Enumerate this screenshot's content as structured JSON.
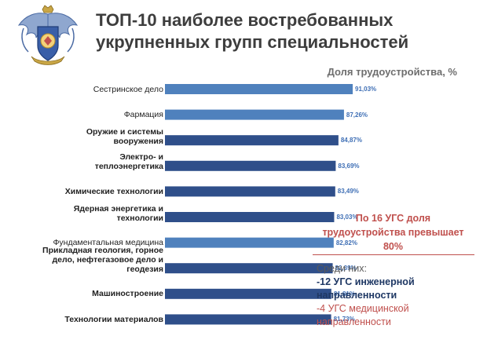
{
  "title": {
    "line1": "ТОП-10 наиболее востребованных",
    "line2": "укрупненных групп специальностей"
  },
  "colors": {
    "bar_light": "#4f81bd",
    "bar_dark": "#2f4f8a",
    "value_text": "#3f6fb5",
    "callout_text": "#c0504d",
    "note_blue": "#1f3864"
  },
  "chart_data": {
    "type": "bar",
    "orientation": "horizontal",
    "ylabel": "Доля трудоустройства, %",
    "value_suffix": "%",
    "xlim": [
      0,
      100
    ],
    "grid": false,
    "categories": [
      "Сестринское дело",
      "Фармация",
      "Оружие и системы вооружения",
      "Электро- и теплоэнергетика",
      "Химические технологии",
      "Ядерная энергетика и технологии",
      "Фундаментальная медицина",
      "Прикладная геология, горное дело, нефтегазовое дело и геодезия",
      "Машиностроение",
      "Технологии материалов"
    ],
    "category_lines": [
      [
        "Сестринское дело"
      ],
      [
        "Фармация"
      ],
      [
        "Оружие и системы",
        "вооружения"
      ],
      [
        "Электро- и",
        "теплоэнергетика"
      ],
      [
        "Химические технологии"
      ],
      [
        "Ядерная энергетика и",
        "технологии"
      ],
      [
        "Фундаментальная медицина"
      ],
      [
        "Прикладная геология, горное",
        "дело, нефтегазовое дело и",
        "геодезия"
      ],
      [
        "Машиностроение"
      ],
      [
        "Технологии материалов"
      ]
    ],
    "bold": [
      false,
      false,
      true,
      true,
      true,
      true,
      false,
      true,
      true,
      true
    ],
    "values": [
      91.03,
      87.26,
      84.87,
      83.69,
      83.49,
      83.03,
      82.82,
      82.39,
      81.81,
      81.73
    ],
    "value_labels": [
      "91,03%",
      "87,26%",
      "84,87%",
      "83,69%",
      "83,49%",
      "83,03%",
      "82,82%",
      "82,39%",
      "81,81%",
      "81,73%"
    ],
    "bar_style": [
      "light",
      "light",
      "dark",
      "dark",
      "dark",
      "dark",
      "light",
      "dark",
      "dark",
      "dark"
    ]
  },
  "callout": {
    "lines": [
      "По 16 УГС доля",
      "трудоустройства превышает",
      "80%"
    ]
  },
  "note": {
    "heading": "Среди них:",
    "line1a": "-12 УГС инженерной",
    "line1b": "направленности",
    "line2a": "-4 УГС медицинской",
    "line2b": "направленности"
  }
}
